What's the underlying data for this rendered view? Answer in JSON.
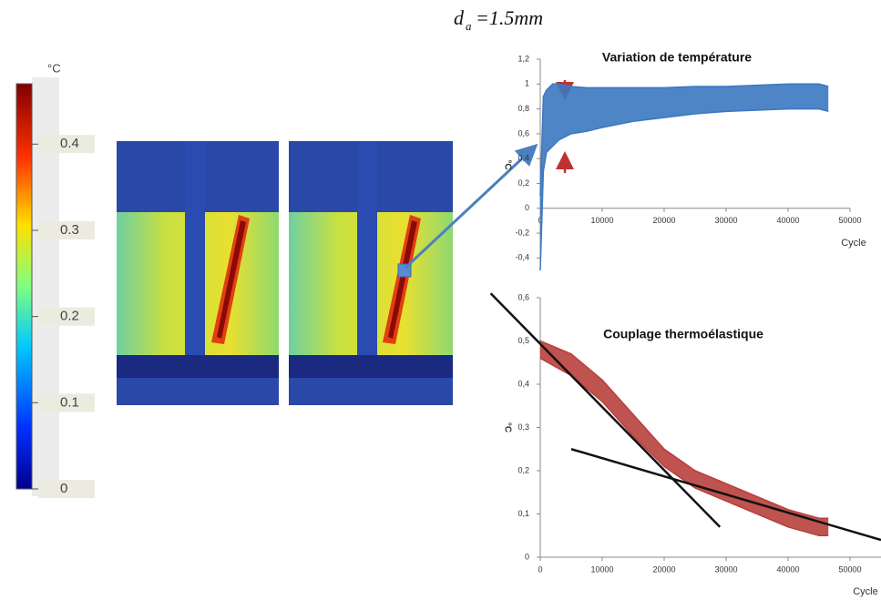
{
  "header": {
    "symbol": "d",
    "subscript": "a",
    "value": "=1.5mm"
  },
  "colorbar": {
    "unit": "°C",
    "lim": [
      0,
      0.47
    ],
    "ticks": [
      0,
      0.1,
      0.2,
      0.3,
      0.4
    ]
  },
  "chart_data": [
    {
      "type": "band",
      "title": "Variation de température",
      "x_label": "Cycle",
      "y_label": "°C",
      "xlim": [
        0,
        50000
      ],
      "ylim": [
        -0.5,
        1.2
      ],
      "xticks": [
        0,
        10000,
        20000,
        30000,
        40000,
        50000
      ],
      "yticks": [
        {
          "value": 1.2,
          "label": "1,2"
        },
        1,
        {
          "value": 0.8,
          "label": "0,8"
        },
        {
          "value": 0.6,
          "label": "0,6"
        },
        {
          "value": 0.4,
          "label": "0,4"
        },
        {
          "value": 0.2,
          "label": "0,2"
        },
        0,
        {
          "value": -0.2,
          "label": "-0,2"
        },
        {
          "value": -0.4,
          "label": "-0,4"
        }
      ],
      "color": "#3a78c0",
      "x": [
        0,
        500,
        1000,
        2000,
        3000,
        5000,
        7500,
        10000,
        15000,
        20000,
        25000,
        30000,
        35000,
        40000,
        45000,
        46500
      ],
      "series": [
        {
          "values": [
            0.1,
            0.9,
            0.95,
            1.0,
            1.0,
            0.98,
            0.97,
            0.97,
            0.97,
            0.97,
            0.98,
            0.98,
            0.99,
            1.0,
            1.0,
            0.98
          ]
        },
        {
          "values": [
            -0.5,
            0.3,
            0.45,
            0.5,
            0.55,
            0.6,
            0.62,
            0.65,
            0.7,
            0.73,
            0.76,
            0.78,
            0.79,
            0.8,
            0.8,
            0.78
          ]
        }
      ]
    },
    {
      "type": "band",
      "title": "Couplage thermoélastique",
      "x_label": "Cycle",
      "y_label": "°C",
      "xlim": [
        0,
        55000
      ],
      "ylim": [
        0,
        0.6
      ],
      "xticks": [
        0,
        10000,
        20000,
        30000,
        40000,
        50000
      ],
      "yticks": [
        {
          "value": 0.6,
          "label": "0,6"
        },
        {
          "value": 0.5,
          "label": "0,5"
        },
        {
          "value": 0.4,
          "label": "0,4"
        },
        {
          "value": 0.3,
          "label": "0,3"
        },
        {
          "value": 0.2,
          "label": "0,2"
        },
        {
          "value": 0.1,
          "label": "0,1"
        },
        0
      ],
      "color": "#b8403c",
      "x": [
        0,
        5000,
        10000,
        15000,
        20000,
        25000,
        30000,
        35000,
        40000,
        45000,
        46500
      ],
      "series": [
        {
          "values": [
            0.5,
            0.47,
            0.41,
            0.33,
            0.25,
            0.2,
            0.17,
            0.14,
            0.11,
            0.09,
            0.09
          ]
        },
        {
          "values": [
            0.46,
            0.42,
            0.36,
            0.28,
            0.21,
            0.16,
            0.13,
            0.1,
            0.07,
            0.05,
            0.05
          ]
        }
      ],
      "trend_lines": [
        {
          "x": [
            -8000,
            29000
          ],
          "y": [
            0.61,
            0.07
          ]
        },
        {
          "x": [
            5000,
            55000
          ],
          "y": [
            0.25,
            0.04
          ]
        }
      ]
    }
  ]
}
